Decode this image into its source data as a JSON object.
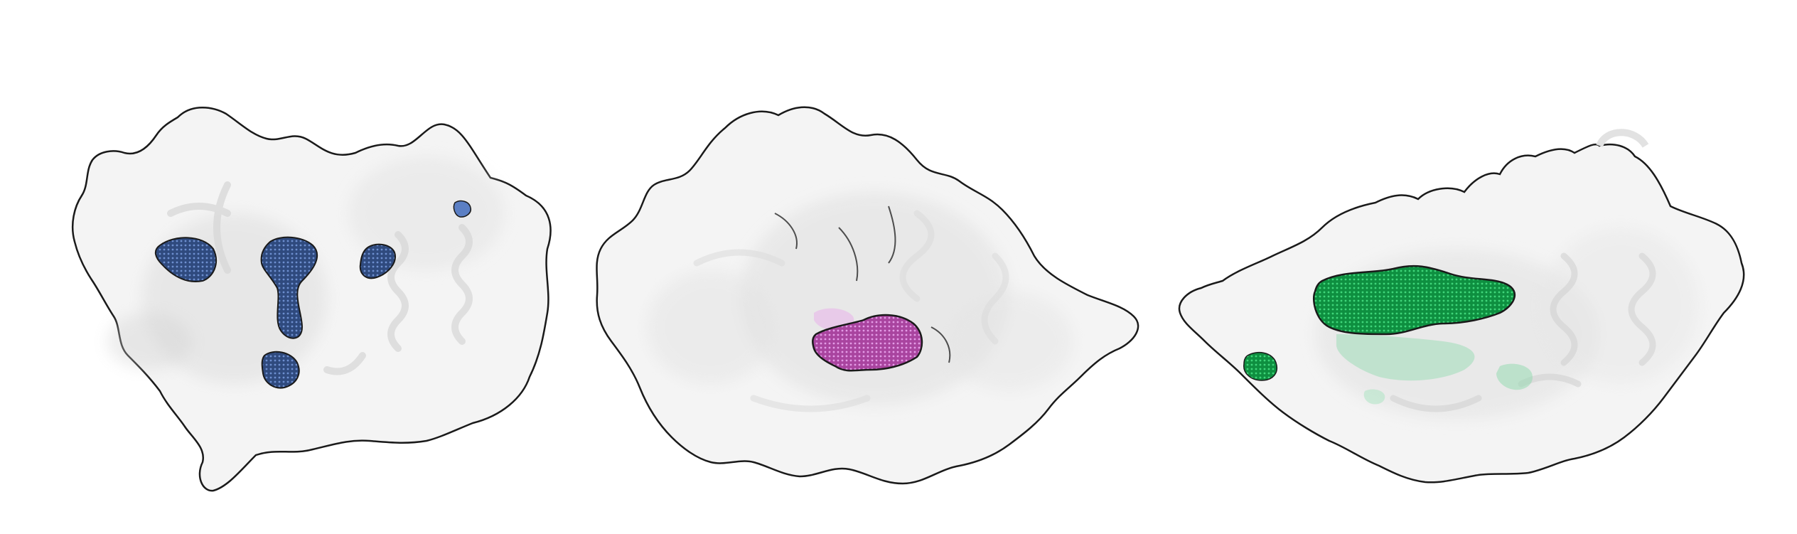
{
  "figure": {
    "panels": [
      {
        "pocket_color": "#2f4a7e",
        "pocket_highlight": "#5b7fc4"
      },
      {
        "pocket_color": "#b04fb8",
        "pocket_highlight": "#e08fe6"
      },
      {
        "pocket_color": "#10a24a",
        "pocket_highlight": "#4fd882"
      }
    ],
    "surface_color": "#f4f4f4",
    "outline_color": "#1a1a1a"
  }
}
